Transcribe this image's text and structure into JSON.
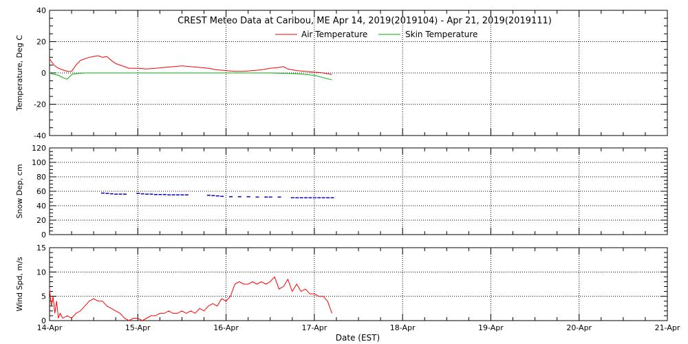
{
  "title": "CREST Meteo Data at Caribou, ME   Apr 14, 2019(2019104) - Apr 21, 2019(2019111)",
  "xlabel": "Date (EST)",
  "x_tick_labels": [
    "14-Apr",
    "15-Apr",
    "16-Apr",
    "17-Apr",
    "18-Apr",
    "19-Apr",
    "20-Apr",
    "21-Apr"
  ],
  "colors": {
    "air": "#ff0000",
    "skin": "#00b000",
    "snow": "#0000c8",
    "wind": "#ff0000",
    "axis": "#000000"
  },
  "chart_data": [
    {
      "type": "line",
      "ylabel": "Temperature, Deg C",
      "ylim": [
        -40,
        40
      ],
      "xlim": [
        0,
        7
      ],
      "x_unit": "days since 14-Apr 00:00 EST",
      "y_ticks": [
        -40,
        -20,
        0,
        20,
        40
      ],
      "grid": true,
      "legend_position": "top-center",
      "series": [
        {
          "name": "Air Temperature",
          "color": "#ff0000",
          "x": [
            0,
            0.05,
            0.1,
            0.15,
            0.2,
            0.25,
            0.3,
            0.35,
            0.4,
            0.45,
            0.5,
            0.55,
            0.6,
            0.65,
            0.7,
            0.75,
            0.8,
            0.85,
            0.9,
            0.95,
            1.0,
            1.1,
            1.2,
            1.3,
            1.4,
            1.5,
            1.6,
            1.7,
            1.8,
            1.9,
            2.0,
            2.1,
            2.2,
            2.3,
            2.4,
            2.5,
            2.6,
            2.65,
            2.7,
            2.8,
            2.9,
            3.0,
            3.1,
            3.2
          ],
          "y": [
            9,
            5,
            3,
            2,
            1,
            1,
            5,
            8,
            9,
            10,
            10.5,
            11,
            10,
            10.5,
            8,
            6,
            5,
            4,
            3,
            3,
            3,
            2.5,
            3,
            3.5,
            4,
            4.5,
            4,
            3.5,
            3,
            2,
            1.5,
            1,
            1,
            1.5,
            2,
            3,
            3.5,
            4,
            2.5,
            1.5,
            1,
            0.5,
            0,
            -1
          ]
        },
        {
          "name": "Skin Temperature",
          "color": "#00b000",
          "x": [
            0,
            0.05,
            0.1,
            0.15,
            0.2,
            0.25,
            0.3,
            0.4,
            0.5,
            0.6,
            0.8,
            1.0,
            1.5,
            2.0,
            2.5,
            2.8,
            3.0,
            3.1,
            3.2
          ],
          "y": [
            0,
            -1,
            -1.5,
            -3,
            -4,
            -1,
            -0.5,
            0,
            0,
            0,
            0,
            0,
            0,
            0,
            0,
            -0.5,
            -1.5,
            -3,
            -4.5
          ]
        }
      ]
    },
    {
      "type": "scatter",
      "ylabel": "Snow Dep, cm",
      "ylim": [
        0,
        120
      ],
      "xlim": [
        0,
        7
      ],
      "y_ticks": [
        0,
        20,
        40,
        60,
        80,
        100,
        120
      ],
      "grid": true,
      "series": [
        {
          "color": "#0000c8",
          "x": [
            0.6,
            0.65,
            0.7,
            0.75,
            0.8,
            0.85,
            1.0,
            1.05,
            1.1,
            1.15,
            1.2,
            1.25,
            1.3,
            1.35,
            1.4,
            1.45,
            1.5,
            1.55,
            1.8,
            1.85,
            1.9,
            1.95,
            2.05,
            2.15,
            2.25,
            2.35,
            2.45,
            2.5,
            2.6,
            2.75,
            2.8,
            2.85,
            2.9,
            2.95,
            3.0,
            3.05,
            3.1,
            3.15,
            3.2
          ],
          "y": [
            57.5,
            57,
            56.5,
            56,
            56,
            56,
            57,
            56.5,
            56,
            56,
            55.5,
            55.5,
            55.5,
            55,
            55,
            55,
            55,
            55,
            54.5,
            54,
            53.5,
            53,
            52.5,
            52.5,
            52.5,
            52,
            52,
            52,
            52,
            51,
            51,
            51,
            51,
            51,
            51,
            51,
            51,
            51,
            51
          ]
        }
      ]
    },
    {
      "type": "line",
      "ylabel": "Wind Spd, m/s",
      "ylim": [
        0,
        15
      ],
      "xlim": [
        0,
        7
      ],
      "y_ticks": [
        0,
        5,
        10,
        15
      ],
      "grid": true,
      "series": [
        {
          "color": "#ff0000",
          "x": [
            0,
            0.02,
            0.04,
            0.06,
            0.08,
            0.1,
            0.12,
            0.15,
            0.2,
            0.25,
            0.3,
            0.35,
            0.4,
            0.45,
            0.5,
            0.55,
            0.6,
            0.65,
            0.7,
            0.75,
            0.8,
            0.85,
            0.9,
            0.95,
            1.0,
            1.05,
            1.1,
            1.15,
            1.2,
            1.25,
            1.3,
            1.35,
            1.4,
            1.45,
            1.5,
            1.55,
            1.6,
            1.65,
            1.7,
            1.75,
            1.8,
            1.85,
            1.9,
            1.95,
            2.0,
            2.05,
            2.1,
            2.15,
            2.2,
            2.25,
            2.3,
            2.35,
            2.4,
            2.45,
            2.5,
            2.55,
            2.6,
            2.65,
            2.7,
            2.75,
            2.8,
            2.85,
            2.9,
            2.95,
            3.0,
            3.05,
            3.1,
            3.15,
            3.2
          ],
          "y": [
            6.5,
            3,
            5,
            1.5,
            4,
            0.5,
            1.5,
            0.5,
            1,
            0.5,
            1.5,
            2,
            3,
            4,
            4.5,
            4,
            4,
            3,
            2.5,
            2,
            1.5,
            0.5,
            0,
            0.5,
            0.5,
            0,
            0.5,
            1,
            1,
            1.5,
            1.5,
            2,
            1.5,
            1.5,
            2,
            1.5,
            2,
            1.5,
            2.5,
            2,
            3,
            3.5,
            3,
            4.5,
            4,
            5,
            7.5,
            8,
            7.5,
            7.5,
            8,
            7.5,
            8,
            7.5,
            8,
            9,
            6.5,
            7,
            8.5,
            6,
            7.5,
            6,
            6.5,
            5.5,
            5.5,
            5,
            5,
            4,
            1.5
          ]
        }
      ]
    }
  ]
}
